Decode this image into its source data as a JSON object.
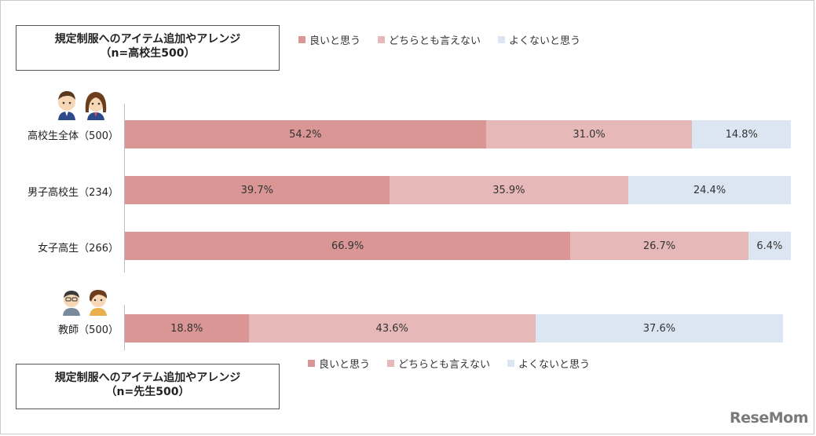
{
  "chart_data": {
    "type": "bar",
    "orientation": "horizontal-stacked-100",
    "titles": {
      "students": [
        "規定制服へのアイテム追加やアレンジ",
        "（n=高校生500）"
      ],
      "teachers": [
        "規定制服へのアイテム追加やアレンジ",
        "（n=先生500）"
      ]
    },
    "legend": [
      "良いと思う",
      "どちらとも言えない",
      "よくないと思う"
    ],
    "colors": [
      "#d99694",
      "#e6b9b8",
      "#dce6f2"
    ],
    "categories": [
      "高校生全体（500）",
      "男子高校生（234）",
      "女子高生（266）",
      "教師（500）"
    ],
    "series": [
      {
        "name": "良いと思う",
        "values": [
          54.2,
          39.7,
          66.9,
          18.8
        ],
        "labels": [
          "54.2%",
          "39.7%",
          "66.9%",
          "18.8%"
        ]
      },
      {
        "name": "どちらとも言えない",
        "values": [
          31.0,
          35.9,
          26.7,
          43.6
        ],
        "labels": [
          "31.0%",
          "35.9%",
          "26.7%",
          "43.6%"
        ]
      },
      {
        "name": "よくないと思う",
        "values": [
          14.8,
          24.4,
          6.4,
          37.6
        ],
        "labels": [
          "14.8%",
          "24.4%",
          "6.4%",
          "37.6%"
        ]
      }
    ],
    "xlim": [
      0,
      100
    ],
    "grid": false,
    "legend_position": "top-right"
  },
  "watermark": "ReseMom"
}
